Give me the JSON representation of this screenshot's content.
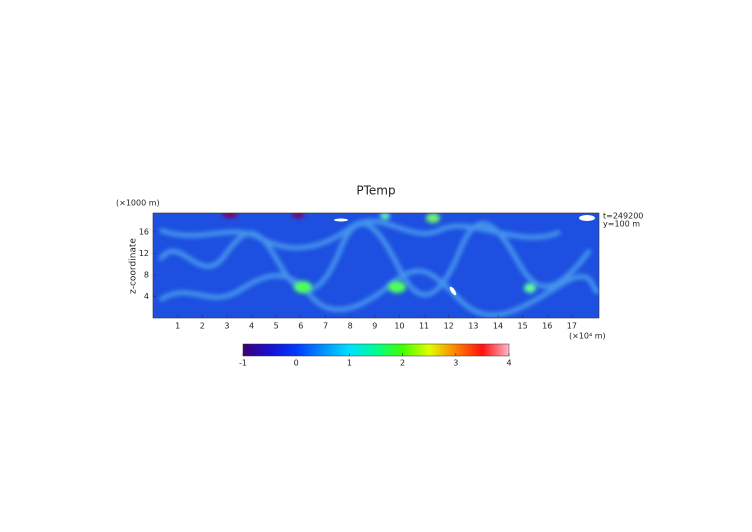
{
  "chart_data": {
    "type": "heatmap",
    "title": "PTemp",
    "x_label": "(×10⁴ m)",
    "y_label": "z-coordinate",
    "y_unit": "(×1000 m)",
    "annotations": [
      "t=249200",
      "y=100 m"
    ],
    "xlim": [
      0,
      18.1
    ],
    "xticks": [
      1,
      2,
      3,
      4,
      5,
      6,
      7,
      8,
      9,
      10,
      11,
      12,
      13,
      14,
      15,
      16,
      17
    ],
    "ylim": [
      0,
      19.5
    ],
    "yticks": [
      4,
      8,
      12,
      16
    ],
    "colorbar": {
      "lim": [
        -1,
        4
      ],
      "ticks": [
        -1,
        0,
        1,
        2,
        3,
        4
      ],
      "colors": [
        [
          -1,
          "#3c0078"
        ],
        [
          -0.5,
          "#1a10d0"
        ],
        [
          0,
          "#0038ff"
        ],
        [
          0.5,
          "#0090ff"
        ],
        [
          1,
          "#00e0ff"
        ],
        [
          1.5,
          "#00ff90"
        ],
        [
          2,
          "#40ff00"
        ],
        [
          2.5,
          "#e0ff00"
        ],
        [
          3,
          "#ff8000"
        ],
        [
          3.5,
          "#ff1010"
        ],
        [
          4,
          "#ffb8c8"
        ]
      ]
    }
  }
}
